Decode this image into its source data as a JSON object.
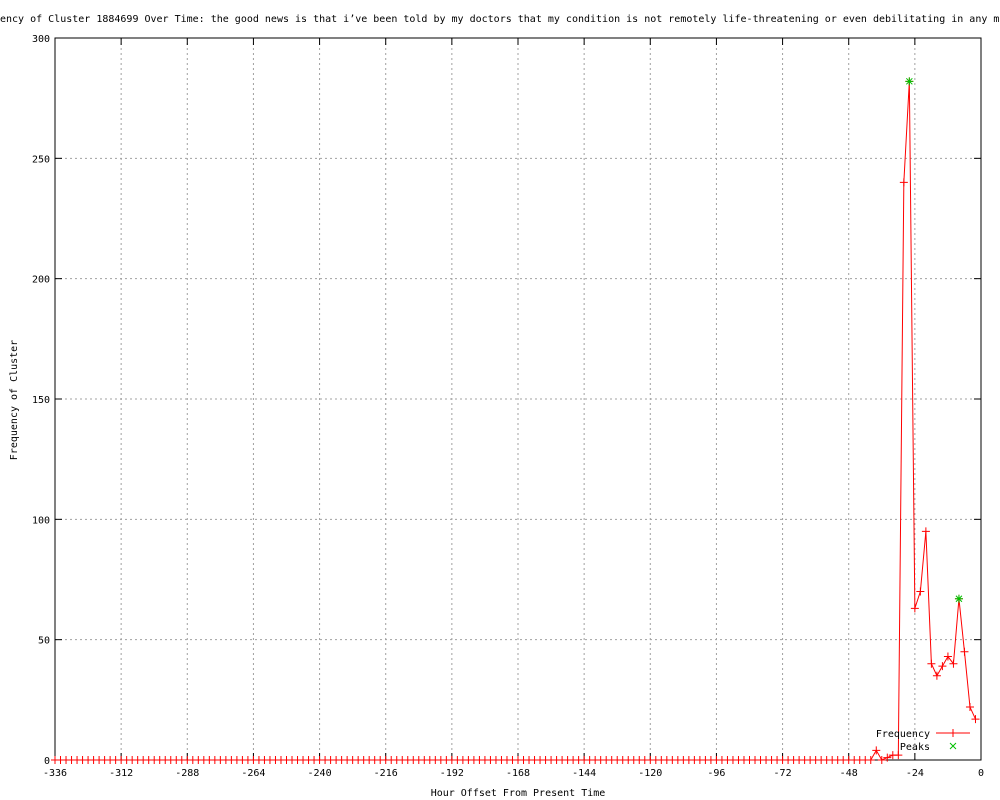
{
  "chart_data": {
    "type": "line",
    "title": "ency of Cluster 1884699 Over Time: the good news is that i’ve been told by my doctors that my condition is not remotely life-threatening or even debilitating in any mea",
    "xlabel": "Hour Offset From Present Time",
    "ylabel": "Frequency of Cluster",
    "xlim": [
      -336,
      0
    ],
    "ylim": [
      0,
      300
    ],
    "xticks": [
      -336,
      -312,
      -288,
      -264,
      -240,
      -216,
      -192,
      -168,
      -144,
      -120,
      -96,
      -72,
      -48,
      -24,
      0
    ],
    "yticks": [
      0,
      50,
      100,
      150,
      200,
      250,
      300
    ],
    "grid": true,
    "legend_position": "bottom-right",
    "series": [
      {
        "name": "Frequency",
        "color": "#ff0000",
        "marker": "plus",
        "nonzero_points": [
          [
            -38,
            4
          ],
          [
            -36,
            0
          ],
          [
            -34,
            1
          ],
          [
            -32,
            2
          ],
          [
            -30,
            2
          ],
          [
            -28,
            240
          ],
          [
            -26,
            282
          ],
          [
            -24,
            63
          ],
          [
            -22,
            70
          ],
          [
            -20,
            95
          ],
          [
            -18,
            40
          ],
          [
            -16,
            35
          ],
          [
            -14,
            39
          ],
          [
            -12,
            43
          ],
          [
            -10,
            40
          ],
          [
            -8,
            67
          ],
          [
            -6,
            45
          ],
          [
            -4,
            22
          ],
          [
            -2,
            17
          ]
        ],
        "x_range_step": [
          -336,
          -2,
          2
        ],
        "default_value": 0
      },
      {
        "name": "Peaks",
        "color": "#00c000",
        "marker": "cross",
        "points": [
          [
            -26,
            282
          ],
          [
            -8,
            67
          ]
        ]
      }
    ]
  }
}
